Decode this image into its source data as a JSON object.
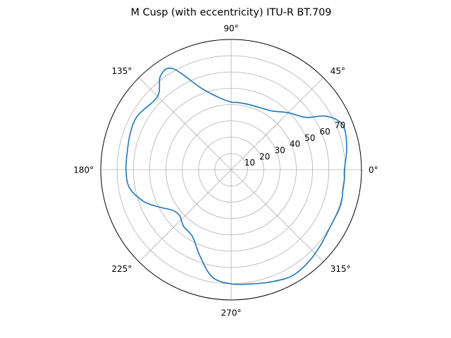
{
  "chart_data": {
    "type": "line",
    "projection": "polar",
    "title": "M Cusp (with eccentricity) ITU-R BT.709",
    "theta_unit": "degrees",
    "theta_ticks": [
      "0°",
      "45°",
      "90°",
      "135°",
      "180°",
      "225°",
      "270°",
      "315°"
    ],
    "r_ticks": [
      "10",
      "20",
      "30",
      "40",
      "50",
      "60",
      "70"
    ],
    "r_tick_values": [
      10,
      20,
      30,
      40,
      50,
      60,
      70
    ],
    "rlim": [
      0,
      80
    ],
    "grid": true,
    "series": [
      {
        "color": "#1f77b4",
        "theta_deg": [
          0,
          10,
          20,
          25,
          30,
          35,
          45,
          55,
          65,
          75,
          85,
          90,
          100,
          110,
          120,
          127,
          135,
          150,
          160,
          170,
          180,
          190,
          200,
          208,
          215,
          222,
          230,
          240,
          250,
          260,
          270,
          280,
          290,
          300,
          310,
          320,
          330,
          340,
          345,
          350,
          355,
          360
        ],
        "r": [
          69.5,
          72,
          74,
          72,
          66,
          56,
          49.5,
          44,
          42,
          41.5,
          41.5,
          41.5,
          45.2,
          53.2,
          71.7,
          72.1,
          63.8,
          66.3,
          65.8,
          64.7,
          64.5,
          63.4,
          57.1,
          49.2,
          43.6,
          42.4,
          45.4,
          47.4,
          56.2,
          66.9,
          70.1,
          71.2,
          73.2,
          75.2,
          73.9,
          71.8,
          70.2,
          70.6,
          70.4,
          69.6,
          69.7,
          69.5
        ]
      }
    ]
  }
}
